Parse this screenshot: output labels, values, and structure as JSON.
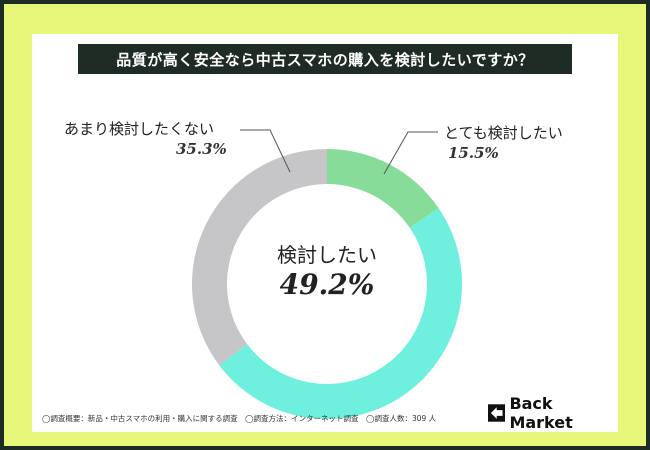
{
  "chart_data": {
    "type": "pie",
    "donut": true,
    "title": "品質が高く安全なら中古スマホの購入を検討したいですか？",
    "center_label": "検討したい",
    "center_value": "49.2%",
    "slices": [
      {
        "name": "とても検討したい",
        "value": 15.5,
        "display": "15.5%",
        "color": "#86dc98"
      },
      {
        "name": "検討したい",
        "value": 49.2,
        "display": "",
        "color": "#6ff0df"
      },
      {
        "name": "あまり検討したくない",
        "value": 35.3,
        "display": "35.3%",
        "color": "#c6c6c8"
      }
    ]
  },
  "footnote": "◯調査概要：新品・中古スマホの利用・購入に関する調査　◯調査方法：インターネット調査　◯調査人数：309 人",
  "brand": {
    "name": "Back Market"
  },
  "colors": {
    "frame": "#e6f77a",
    "border": "#1e2a24",
    "title_bg": "#1f2b25"
  }
}
